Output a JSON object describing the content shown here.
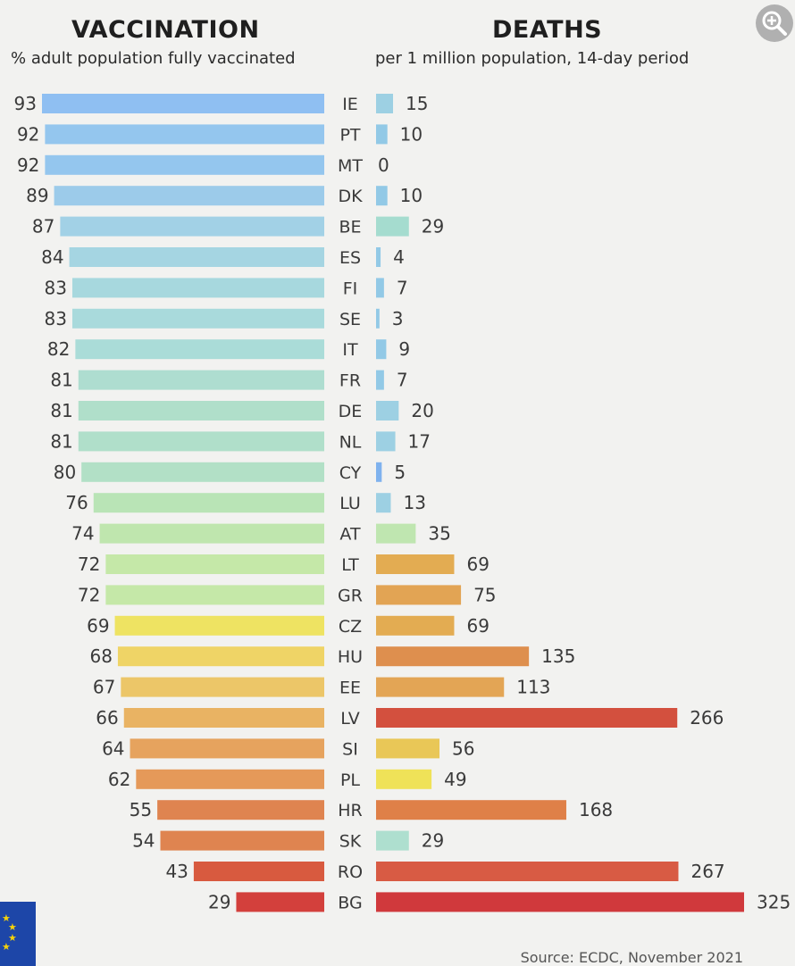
{
  "vaccination_header": {
    "title": "VACCINATION",
    "subtitle": "% adult population fully vaccinated"
  },
  "deaths_header": {
    "title": "DEATHS",
    "subtitle": "per 1 million population, 14-day period"
  },
  "source": "Source: ECDC, November 2021",
  "icons": {
    "zoom": "zoom-in-icon",
    "flag": "eu-flag-icon"
  },
  "chart_data": [
    {
      "type": "bar",
      "orientation": "horizontal",
      "direction": "right-to-left",
      "title": "VACCINATION",
      "subtitle": "% adult population fully vaccinated",
      "categories": [
        "IE",
        "PT",
        "MT",
        "DK",
        "BE",
        "ES",
        "FI",
        "SE",
        "IT",
        "FR",
        "DE",
        "NL",
        "CY",
        "LU",
        "AT",
        "LT",
        "GR",
        "CZ",
        "HU",
        "EE",
        "LV",
        "SI",
        "PL",
        "HR",
        "SK",
        "RO",
        "BG"
      ],
      "values": [
        93,
        92,
        92,
        89,
        87,
        84,
        83,
        83,
        82,
        81,
        81,
        81,
        80,
        76,
        74,
        72,
        72,
        69,
        68,
        67,
        66,
        64,
        62,
        55,
        54,
        43,
        29
      ],
      "colors": [
        "#8fbff2",
        "#94c6ee",
        "#94c6ee",
        "#9ccbea",
        "#a2d1e6",
        "#a5d5e2",
        "#a7d8de",
        "#a9dadc",
        "#aadcd8",
        "#aeddd0",
        "#b0dfca",
        "#b0dfca",
        "#b2e0c6",
        "#b9e4b6",
        "#bfe6ae",
        "#c5e8a8",
        "#c5e8a8",
        "#eee362",
        "#efd466",
        "#ecc668",
        "#e9b363",
        "#e6a35e",
        "#e59959",
        "#df8450",
        "#df8450",
        "#d85a3f",
        "#d3403c"
      ],
      "xlim": [
        0,
        93
      ],
      "grid": false,
      "legend": "none"
    },
    {
      "type": "bar",
      "orientation": "horizontal",
      "title": "DEATHS",
      "subtitle": "per 1 million population, 14-day period",
      "categories": [
        "IE",
        "PT",
        "MT",
        "DK",
        "BE",
        "ES",
        "FI",
        "SE",
        "IT",
        "FR",
        "DE",
        "NL",
        "CY",
        "LU",
        "AT",
        "LT",
        "GR",
        "CZ",
        "HU",
        "EE",
        "LV",
        "SI",
        "PL",
        "HR",
        "SK",
        "RO",
        "BG"
      ],
      "values": [
        15,
        10,
        0,
        10,
        29,
        4,
        7,
        3,
        9,
        7,
        20,
        17,
        5,
        13,
        35,
        69,
        75,
        69,
        135,
        113,
        266,
        56,
        49,
        168,
        29,
        267,
        325
      ],
      "colors": [
        "#9dd0e3",
        "#92c9e6",
        "#92c9e6",
        "#92c9e6",
        "#a5dccf",
        "#92c9e6",
        "#92c9e6",
        "#92c9e6",
        "#92c9e6",
        "#92c9e6",
        "#9dd0e3",
        "#9dd0e3",
        "#7fb2ee",
        "#9dd0e3",
        "#bfe6b0",
        "#e3ac52",
        "#e2a454",
        "#e3ac52",
        "#de8f4e",
        "#e3a555",
        "#d3503e",
        "#e9c757",
        "#efe258",
        "#df8048",
        "#aedfcf",
        "#d85b44",
        "#d0393c"
      ],
      "xlim": [
        0,
        325
      ],
      "grid": false,
      "legend": "none"
    }
  ]
}
